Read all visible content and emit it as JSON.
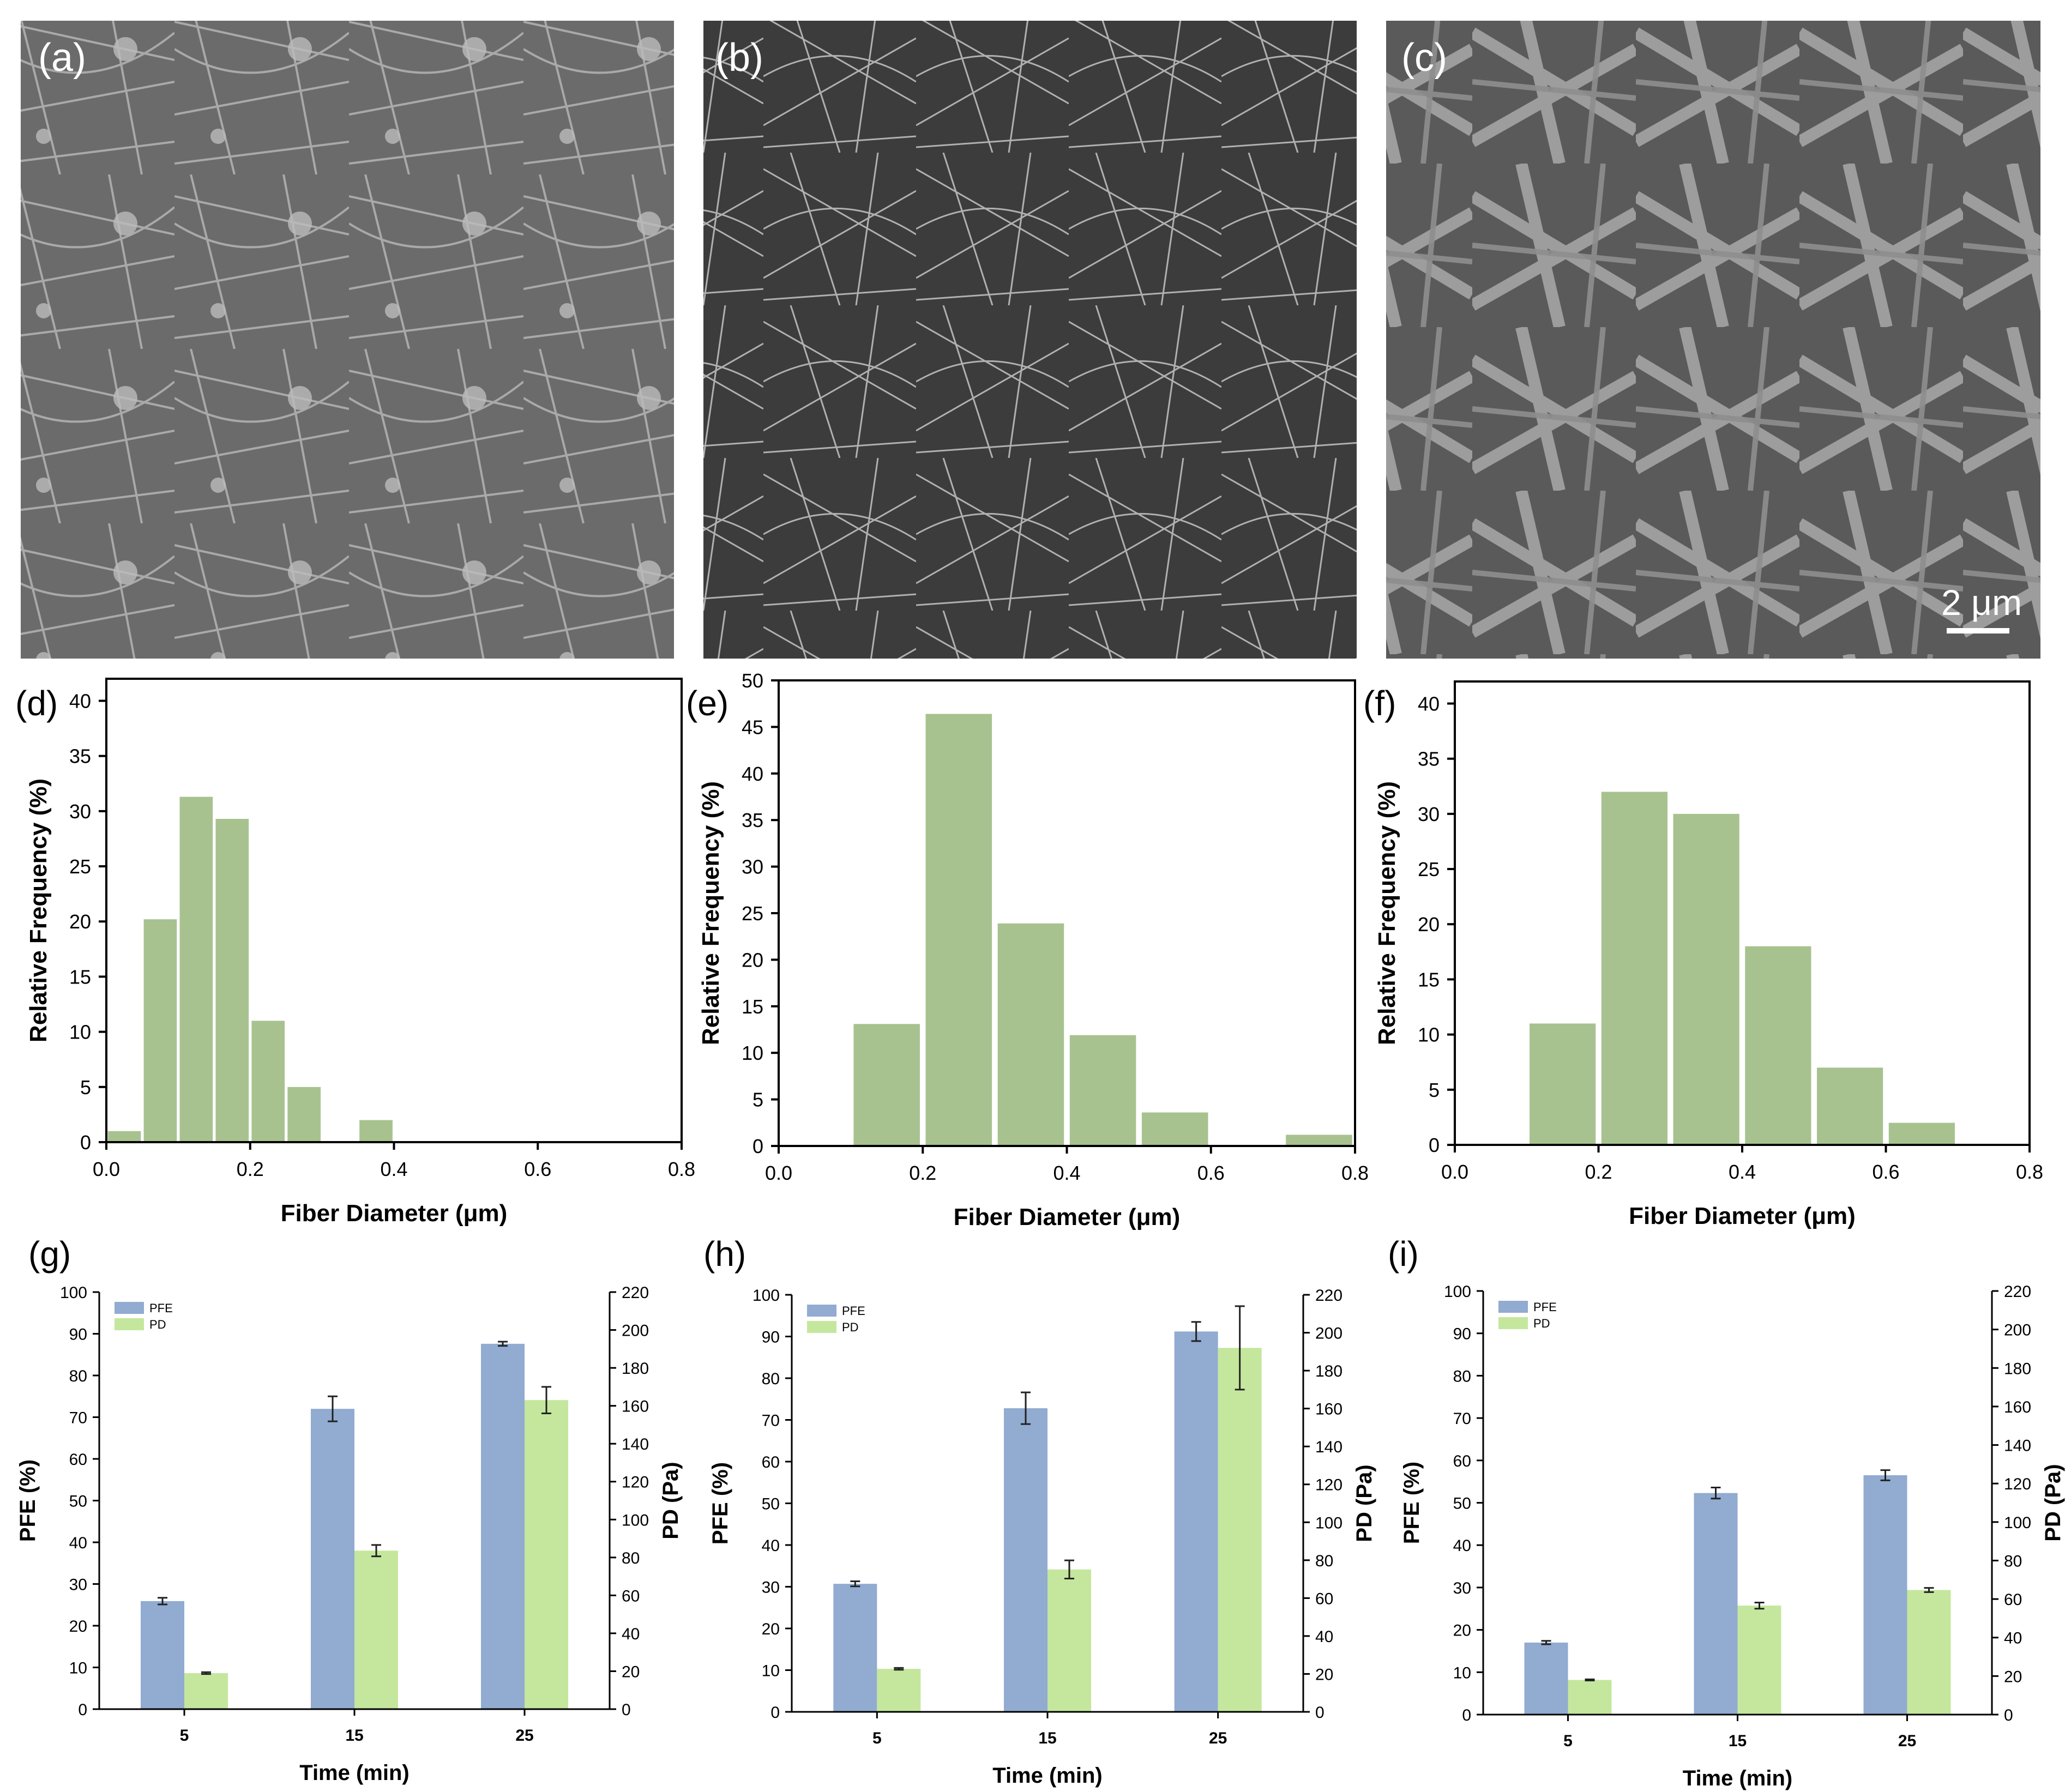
{
  "sem_panels": [
    {
      "label": "(a)",
      "scale_bar": ""
    },
    {
      "label": "(b)",
      "scale_bar": ""
    },
    {
      "label": "(c)",
      "scale_bar": "2 μm"
    }
  ],
  "chart_data": [
    {
      "id": "d",
      "type": "bar",
      "panel_label": "(d)",
      "xlabel": "Fiber Diameter (μm)",
      "ylabel": "Relative Frequency (%)",
      "xlim": [
        0,
        0.8
      ],
      "ylim": [
        0,
        42
      ],
      "xticks": [
        "0.0",
        "0.2",
        "0.4",
        "0.6",
        "0.8"
      ],
      "yticks": [
        "0",
        "5",
        "10",
        "15",
        "20",
        "25",
        "30",
        "35",
        "40"
      ],
      "x": [
        0.025,
        0.075,
        0.125,
        0.175,
        0.225,
        0.275,
        0.375
      ],
      "values": [
        1,
        20.2,
        31.3,
        29.3,
        11,
        5,
        2
      ],
      "bin_width": 0.05,
      "color": "#a7c28f"
    },
    {
      "id": "e",
      "type": "bar",
      "panel_label": "(e)",
      "xlabel": "Fiber Diameter (μm)",
      "ylabel": "Relative Frequency (%)",
      "xlim": [
        0,
        0.8
      ],
      "ylim": [
        0,
        50
      ],
      "xticks": [
        "0.0",
        "0.2",
        "0.4",
        "0.6",
        "0.8"
      ],
      "yticks": [
        "0",
        "5",
        "10",
        "15",
        "20",
        "25",
        "30",
        "35",
        "40",
        "45",
        "50"
      ],
      "x": [
        0.15,
        0.25,
        0.35,
        0.45,
        0.55,
        0.75
      ],
      "values": [
        13.1,
        46.4,
        23.9,
        11.9,
        3.6,
        1.2
      ],
      "bin_width": 0.1,
      "color": "#a7c28f"
    },
    {
      "id": "f",
      "type": "bar",
      "panel_label": "(f)",
      "xlabel": "Fiber Diameter (μm)",
      "ylabel": "Relative Frequency (%)",
      "xlim": [
        0,
        0.8
      ],
      "ylim": [
        0,
        42
      ],
      "xticks": [
        "0.0",
        "0.2",
        "0.4",
        "0.6",
        "0.8"
      ],
      "yticks": [
        "0",
        "5",
        "10",
        "15",
        "20",
        "25",
        "30",
        "35",
        "40"
      ],
      "x": [
        0.15,
        0.25,
        0.35,
        0.45,
        0.55,
        0.65
      ],
      "values": [
        11,
        32,
        30,
        18,
        7,
        2
      ],
      "bin_width": 0.1,
      "color": "#a7c28f"
    },
    {
      "id": "g",
      "type": "bar",
      "panel_label": "(g)",
      "categories": [
        "5",
        "15",
        "25"
      ],
      "xlabel": "Time (min)",
      "ylabel": "PFE (%)",
      "y2label": "PD (Pa)",
      "ylim": [
        0,
        100
      ],
      "y2lim": [
        0,
        220
      ],
      "yticks": [
        "0",
        "10",
        "20",
        "30",
        "40",
        "50",
        "60",
        "70",
        "80",
        "90",
        "100"
      ],
      "y2ticks": [
        "0",
        "20",
        "40",
        "60",
        "80",
        "100",
        "120",
        "140",
        "160",
        "180",
        "200",
        "220"
      ],
      "series": [
        {
          "name": "PFE",
          "axis": "left",
          "color": "#91abd1",
          "values": [
            25.9,
            72,
            87.6
          ],
          "errors": [
            0.8,
            3,
            0.5
          ]
        },
        {
          "name": "PD",
          "axis": "right",
          "color": "#c4e79d",
          "values": [
            19,
            83.6,
            163
          ],
          "errors": [
            0.5,
            3,
            7
          ]
        }
      ]
    },
    {
      "id": "h",
      "type": "bar",
      "panel_label": "(h)",
      "categories": [
        "5",
        "15",
        "25"
      ],
      "xlabel": "Time (min)",
      "ylabel": "PFE (%)",
      "y2label": "PD (Pa)",
      "ylim": [
        0,
        100
      ],
      "y2lim": [
        0,
        220
      ],
      "yticks": [
        "0",
        "10",
        "20",
        "30",
        "40",
        "50",
        "60",
        "70",
        "80",
        "90",
        "100"
      ],
      "y2ticks": [
        "0",
        "20",
        "40",
        "60",
        "80",
        "100",
        "120",
        "140",
        "160",
        "180",
        "200",
        "220"
      ],
      "series": [
        {
          "name": "PFE",
          "axis": "left",
          "color": "#91abd1",
          "values": [
            30.7,
            72.8,
            91.2
          ],
          "errors": [
            0.6,
            3.8,
            2.3
          ]
        },
        {
          "name": "PD",
          "axis": "right",
          "color": "#c4e79d",
          "values": [
            22.7,
            75.1,
            192
          ],
          "errors": [
            0.5,
            4.8,
            22
          ]
        }
      ]
    },
    {
      "id": "i",
      "type": "bar",
      "panel_label": "(i)",
      "categories": [
        "5",
        "15",
        "25"
      ],
      "xlabel": "Time (min)",
      "ylabel": "PFE (%)",
      "y2label": "PD (Pa)",
      "ylim": [
        0,
        100
      ],
      "y2lim": [
        0,
        220
      ],
      "yticks": [
        "0",
        "10",
        "20",
        "30",
        "40",
        "50",
        "60",
        "70",
        "80",
        "90",
        "100"
      ],
      "y2ticks": [
        "0",
        "20",
        "40",
        "60",
        "80",
        "100",
        "120",
        "140",
        "160",
        "180",
        "200",
        "220"
      ],
      "series": [
        {
          "name": "PFE",
          "axis": "left",
          "color": "#91abd1",
          "values": [
            17,
            52.3,
            56.5
          ],
          "errors": [
            0.4,
            1.3,
            1.2
          ]
        },
        {
          "name": "PD",
          "axis": "right",
          "color": "#c4e79d",
          "values": [
            18,
            56.6,
            64.7
          ],
          "errors": [
            0.3,
            1.6,
            1.1
          ]
        }
      ]
    }
  ]
}
